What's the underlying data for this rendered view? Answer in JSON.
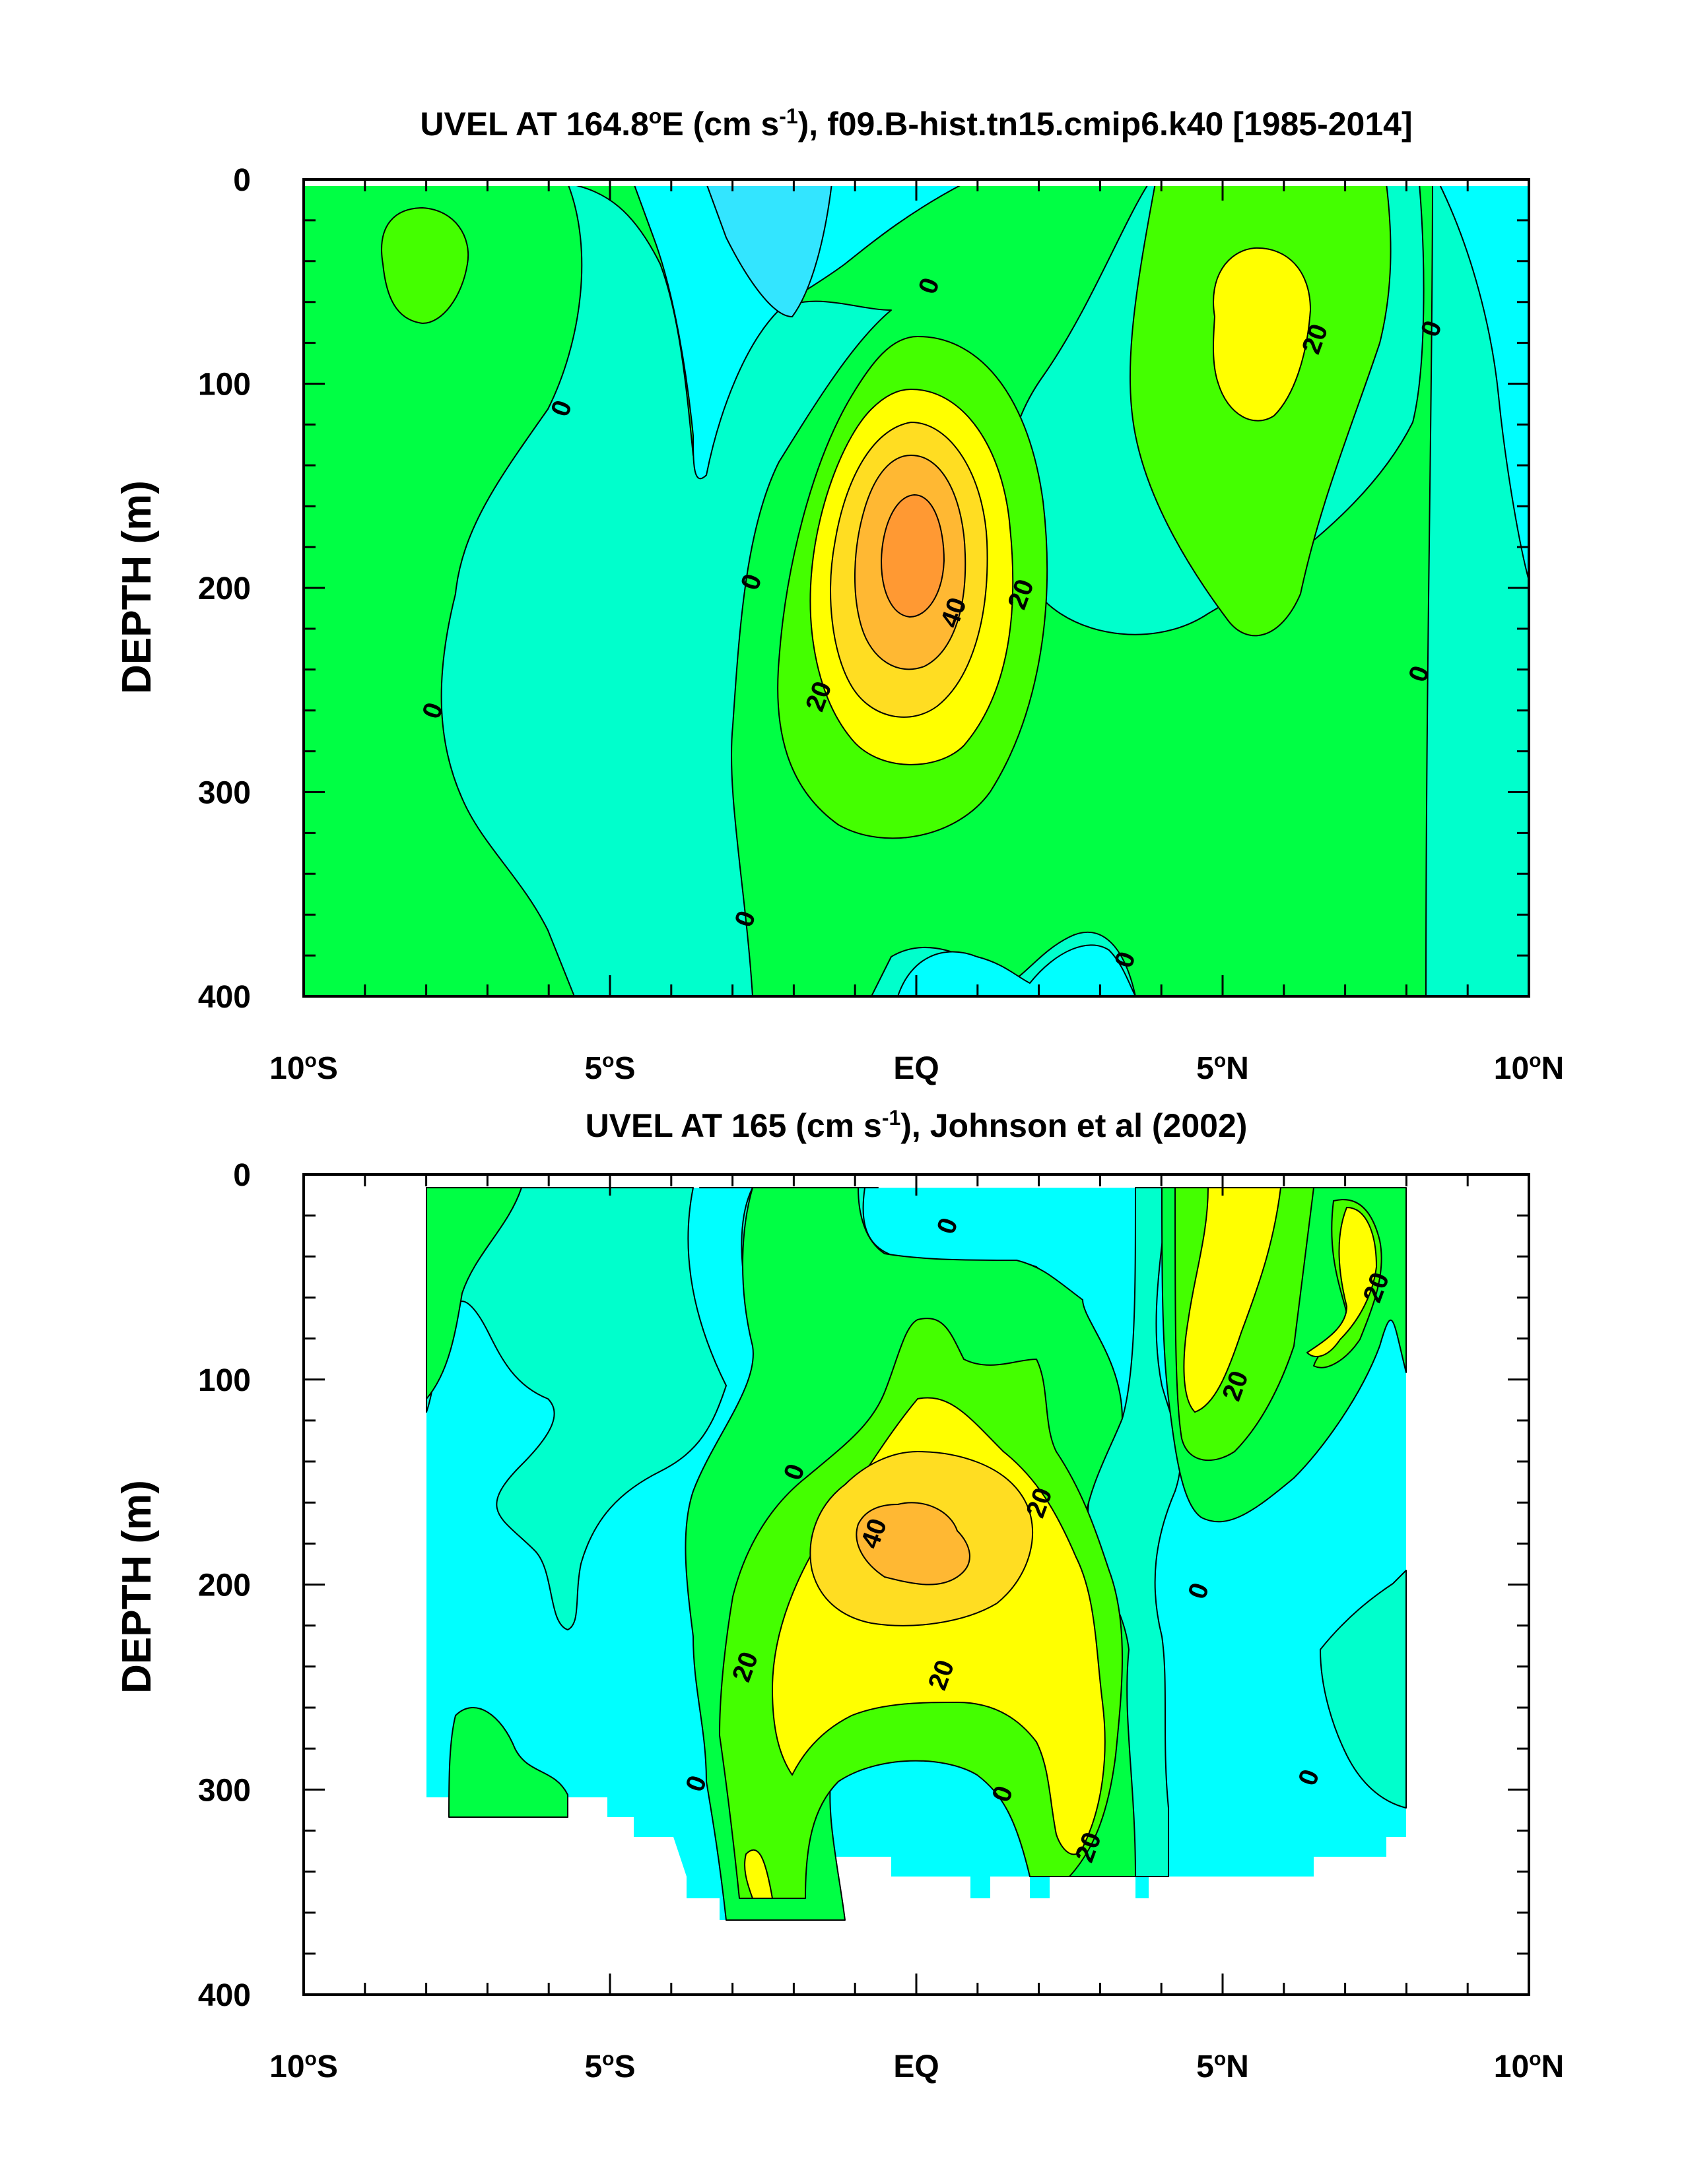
{
  "colors": {
    "cyan": "#00FFFF",
    "light_cyan": "#33E5FF",
    "aqua_green": "#00FFCC",
    "green": "#00FF44",
    "lime": "#44FF00",
    "yellow": "#FFFF00",
    "gold": "#FFDD22",
    "orange_light": "#FFB833",
    "orange": "#FF9933"
  },
  "chart_data": [
    {
      "type": "heatmap",
      "subtype": "filled-contour",
      "title_pre": "UVEL AT 164.8",
      "title_deg": "o",
      "title_mid": "E (cm s",
      "title_sup": "-1",
      "title_post": "), f09.B-hist.tn15.cmip6.k40 [1985-2014]",
      "xlabel": "",
      "ylabel": "DEPTH (m)",
      "xlim": [
        -10,
        10
      ],
      "ylim": [
        400,
        0
      ],
      "yticks": [
        "0",
        "100",
        "200",
        "300",
        "400"
      ],
      "xticks": [
        {
          "num": "10",
          "deg": "o",
          "hem": "S"
        },
        {
          "num": "5",
          "deg": "o",
          "hem": "S"
        },
        {
          "num": "EQ",
          "deg": "",
          "hem": ""
        },
        {
          "num": "5",
          "deg": "o",
          "hem": "N"
        },
        {
          "num": "10",
          "deg": "o",
          "hem": "N"
        }
      ],
      "contour_interval": 10,
      "contour_labels": [
        {
          "text": "0",
          "lon": -5.8,
          "depth": 112
        },
        {
          "text": "0",
          "lon": -7.9,
          "depth": 260
        },
        {
          "text": "0",
          "lon": -2.7,
          "depth": 197
        },
        {
          "text": "0",
          "lon": -2.8,
          "depth": 362
        },
        {
          "text": "0",
          "lon": 0.2,
          "depth": 52
        },
        {
          "text": "0",
          "lon": 3.4,
          "depth": 382
        },
        {
          "text": "0",
          "lon": 8.4,
          "depth": 73
        },
        {
          "text": "0",
          "lon": 8.2,
          "depth": 242
        },
        {
          "text": "20",
          "lon": 6.5,
          "depth": 78
        },
        {
          "text": "20",
          "lon": 1.7,
          "depth": 203
        },
        {
          "text": "20",
          "lon": -1.6,
          "depth": 253
        },
        {
          "text": "40",
          "lon": 0.6,
          "depth": 212
        }
      ]
    },
    {
      "type": "heatmap",
      "subtype": "filled-contour",
      "title_pre": "UVEL AT 165 (cm s",
      "title_sup": "-1",
      "title_post": "), Johnson et al (2002)",
      "xlabel": "",
      "ylabel": "DEPTH (m)",
      "xlim": [
        -10,
        10
      ],
      "ylim": [
        400,
        0
      ],
      "yticks": [
        "0",
        "100",
        "200",
        "300",
        "400"
      ],
      "xticks": [
        {
          "num": "10",
          "deg": "o",
          "hem": "S"
        },
        {
          "num": "5",
          "deg": "o",
          "hem": "S"
        },
        {
          "num": "EQ",
          "deg": "",
          "hem": ""
        },
        {
          "num": "5",
          "deg": "o",
          "hem": "N"
        },
        {
          "num": "10",
          "deg": "o",
          "hem": "N"
        }
      ],
      "data_extent_lon": [
        -8,
        8
      ],
      "contour_interval": 10,
      "contour_labels": [
        {
          "text": "0",
          "lon": 0.5,
          "depth": 25
        },
        {
          "text": "0",
          "lon": -2.0,
          "depth": 145
        },
        {
          "text": "0",
          "lon": -3.6,
          "depth": 297
        },
        {
          "text": "0",
          "lon": 1.4,
          "depth": 302
        },
        {
          "text": "0",
          "lon": 4.6,
          "depth": 203
        },
        {
          "text": "0",
          "lon": 6.4,
          "depth": 294
        },
        {
          "text": "20",
          "lon": 7.5,
          "depth": 55
        },
        {
          "text": "20",
          "lon": 5.2,
          "depth": 103
        },
        {
          "text": "20",
          "lon": 2.0,
          "depth": 160
        },
        {
          "text": "20",
          "lon": -2.8,
          "depth": 240
        },
        {
          "text": "20",
          "lon": 0.4,
          "depth": 244
        },
        {
          "text": "20",
          "lon": 2.8,
          "depth": 328
        },
        {
          "text": "40",
          "lon": -0.7,
          "depth": 175
        }
      ]
    }
  ]
}
